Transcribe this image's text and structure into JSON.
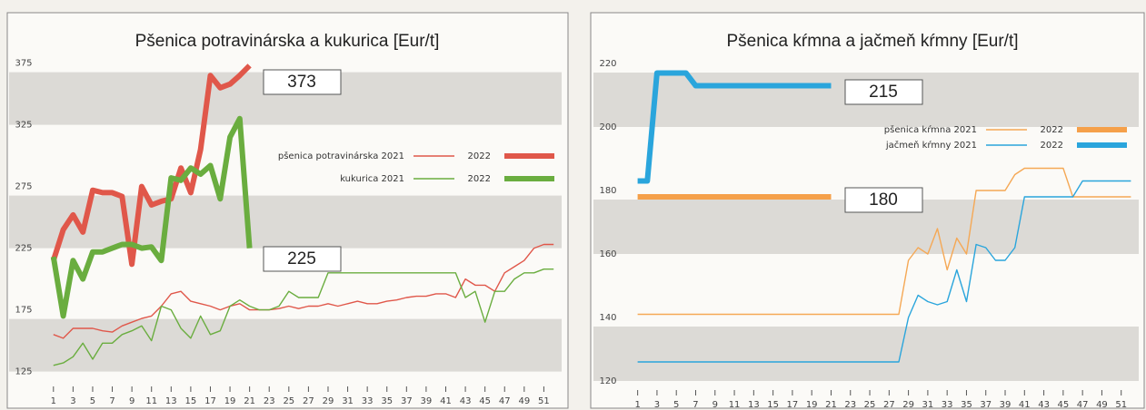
{
  "chart_data": [
    {
      "type": "line",
      "title": "Pšenica potravinárska a kukurica [Eur/t]",
      "x": [
        1,
        2,
        3,
        4,
        5,
        6,
        7,
        8,
        9,
        10,
        11,
        12,
        13,
        14,
        15,
        16,
        17,
        18,
        19,
        20,
        21,
        22,
        23,
        24,
        25,
        26,
        27,
        28,
        29,
        30,
        31,
        32,
        33,
        34,
        35,
        36,
        37,
        38,
        39,
        40,
        41,
        42,
        43,
        44,
        45,
        46,
        47,
        48,
        49,
        50,
        51,
        52
      ],
      "xlim": [
        0,
        53
      ],
      "xticks": [
        1,
        3,
        5,
        7,
        9,
        11,
        13,
        15,
        17,
        19,
        21,
        23,
        25,
        27,
        29,
        31,
        33,
        35,
        37,
        39,
        41,
        43,
        45,
        47,
        49,
        51
      ],
      "ylim": [
        110,
        385
      ],
      "yticks": [
        125,
        175,
        225,
        275,
        325,
        375
      ],
      "annotations": [
        "373",
        "225"
      ],
      "series": [
        {
          "name": "pšenica potravinárska 2021",
          "color": "#e0574a",
          "values": [
            155,
            152,
            160,
            160,
            160,
            158,
            157,
            162,
            165,
            168,
            170,
            178,
            188,
            190,
            182,
            180,
            178,
            175,
            178,
            180,
            175,
            175,
            175,
            176,
            178,
            176,
            178,
            178,
            180,
            178,
            180,
            182,
            180,
            180,
            182,
            183,
            185,
            186,
            186,
            188,
            188,
            185,
            200,
            195,
            195,
            190,
            205,
            210,
            215,
            225,
            228,
            228
          ]
        },
        {
          "name": "2022",
          "color": "#e0574a",
          "values": [
            215,
            240,
            252,
            238,
            272,
            270,
            270,
            267,
            212,
            275,
            260,
            263,
            265,
            290,
            270,
            305,
            365,
            355,
            358,
            365,
            373,
            null,
            null,
            null,
            null,
            null,
            null,
            null,
            null,
            null,
            null,
            null,
            null,
            null,
            null,
            null,
            null,
            null,
            null,
            null,
            null,
            null,
            null,
            null,
            null,
            null,
            null,
            null,
            null,
            null,
            null,
            null
          ]
        },
        {
          "name": "kukurica 2021",
          "color": "#6aad3f",
          "values": [
            130,
            132,
            137,
            148,
            135,
            148,
            148,
            155,
            158,
            162,
            150,
            178,
            175,
            160,
            152,
            170,
            155,
            158,
            178,
            183,
            178,
            175,
            175,
            178,
            190,
            185,
            185,
            185,
            205,
            205,
            205,
            205,
            205,
            205,
            205,
            205,
            205,
            205,
            205,
            205,
            205,
            205,
            185,
            190,
            165,
            190,
            190,
            200,
            205,
            205,
            208,
            208
          ]
        },
        {
          "name": "2022",
          "color": "#6aad3f",
          "values": [
            218,
            170,
            215,
            200,
            222,
            222,
            225,
            228,
            228,
            225,
            226,
            215,
            282,
            280,
            290,
            285,
            292,
            265,
            315,
            330,
            225,
            null,
            null,
            null,
            null,
            null,
            null,
            null,
            null,
            null,
            null,
            null,
            null,
            null,
            null,
            null,
            null,
            null,
            null,
            null,
            null,
            null,
            null,
            null,
            null,
            null,
            null,
            null,
            null,
            null,
            null,
            null
          ]
        }
      ]
    },
    {
      "type": "line",
      "title": "Pšenica kŕmna a jačmeň kŕmny [Eur/t]",
      "x": [
        1,
        2,
        3,
        4,
        5,
        6,
        7,
        8,
        9,
        10,
        11,
        12,
        13,
        14,
        15,
        16,
        17,
        18,
        19,
        20,
        21,
        22,
        23,
        24,
        25,
        26,
        27,
        28,
        29,
        30,
        31,
        32,
        33,
        34,
        35,
        36,
        37,
        38,
        39,
        40,
        41,
        42,
        43,
        44,
        45,
        46,
        47,
        48,
        49,
        50,
        51,
        52
      ],
      "xlim": [
        0,
        53
      ],
      "xticks": [
        1,
        3,
        5,
        7,
        9,
        11,
        13,
        15,
        17,
        19,
        21,
        23,
        25,
        27,
        29,
        31,
        33,
        35,
        37,
        39,
        41,
        43,
        45,
        47,
        49,
        51
      ],
      "ylim": [
        116,
        224
      ],
      "yticks": [
        120,
        140,
        160,
        180,
        200,
        220
      ],
      "annotations": [
        "215",
        "180"
      ],
      "series": [
        {
          "name": "pšenica kŕmna 2021",
          "color": "#f5a855",
          "values": [
            141,
            141,
            141,
            141,
            141,
            141,
            141,
            141,
            141,
            141,
            141,
            141,
            141,
            141,
            141,
            141,
            141,
            141,
            141,
            141,
            141,
            141,
            141,
            141,
            141,
            141,
            141,
            141,
            158,
            162,
            160,
            168,
            155,
            165,
            160,
            180,
            180,
            180,
            180,
            185,
            187,
            187,
            187,
            187,
            187,
            178,
            178,
            178,
            178,
            178,
            178,
            178
          ]
        },
        {
          "name": "2022",
          "color": "#f5a04a",
          "values": [
            178,
            178,
            178,
            178,
            178,
            178,
            178,
            178,
            178,
            178,
            178,
            178,
            178,
            178,
            178,
            178,
            178,
            178,
            178,
            178,
            178,
            null,
            null,
            null,
            null,
            null,
            null,
            null,
            null,
            null,
            null,
            null,
            null,
            null,
            null,
            null,
            null,
            null,
            null,
            null,
            null,
            null,
            null,
            null,
            null,
            null,
            null,
            null,
            null,
            null,
            null,
            null
          ]
        },
        {
          "name": "jačmeň kŕmny 2021",
          "color": "#2aa5dc",
          "values": [
            126,
            126,
            126,
            126,
            126,
            126,
            126,
            126,
            126,
            126,
            126,
            126,
            126,
            126,
            126,
            126,
            126,
            126,
            126,
            126,
            126,
            126,
            126,
            126,
            126,
            126,
            126,
            126,
            140,
            147,
            145,
            144,
            145,
            155,
            145,
            163,
            162,
            158,
            158,
            162,
            178,
            178,
            178,
            178,
            178,
            178,
            183,
            183,
            183,
            183,
            183,
            183
          ]
        },
        {
          "name": "2022",
          "color": "#2aa5dc",
          "values": [
            183,
            183,
            217,
            217,
            217,
            217,
            213,
            213,
            213,
            213,
            213,
            213,
            213,
            213,
            213,
            213,
            213,
            213,
            213,
            213,
            213,
            null,
            null,
            null,
            null,
            null,
            null,
            null,
            null,
            null,
            null,
            null,
            null,
            null,
            null,
            null,
            null,
            null,
            null,
            null,
            null,
            null,
            null,
            null,
            null,
            null,
            null,
            null,
            null,
            null,
            null,
            null
          ]
        }
      ]
    }
  ]
}
